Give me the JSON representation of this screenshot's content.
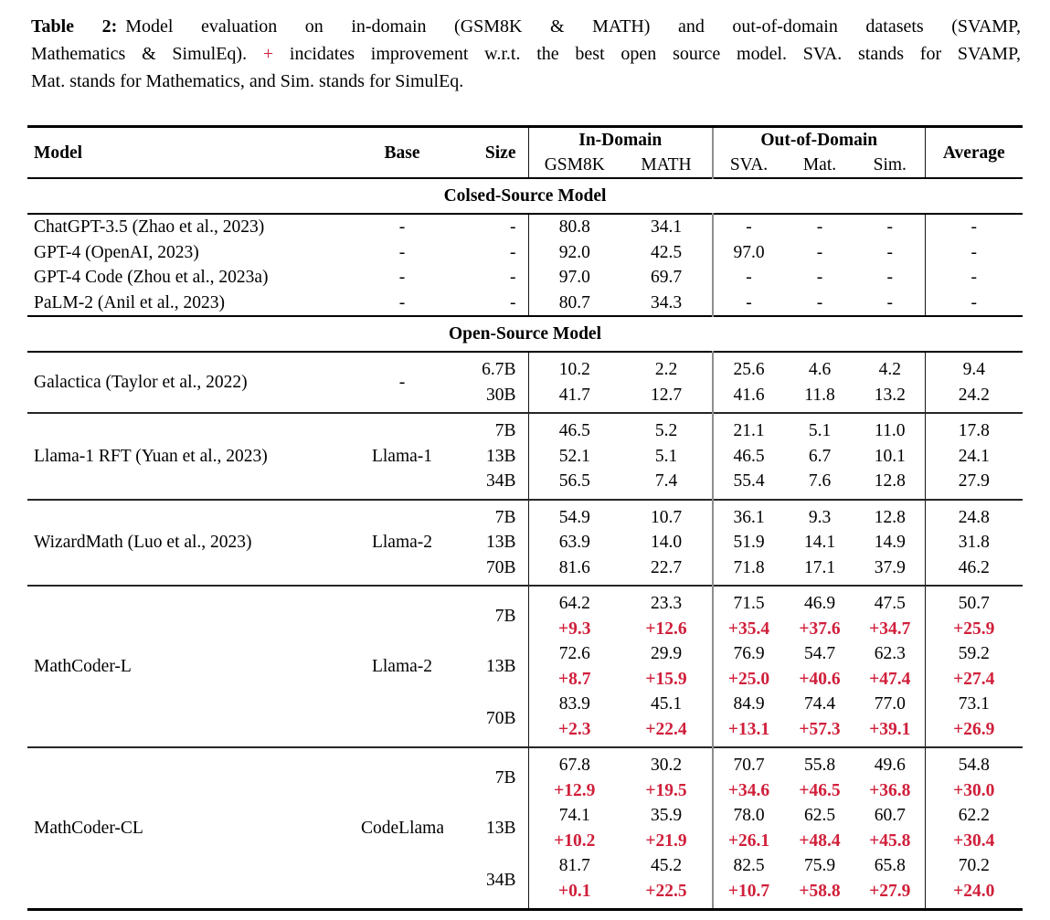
{
  "colors": {
    "delta_red": "#d01f3a"
  },
  "caption": {
    "label": "Table 2:",
    "line1_rest": "Model evaluation on in-domain (GSM8K & MATH) and out-of-domain datasets (SVAMP,",
    "line2_before_plus": "Mathematics & SimulEq). ",
    "plus_sign": "+",
    "line2_after_plus": " incidates improvement w.r.t. the best open source model. SVA. stands for SVAMP,",
    "line3": "Mat. stands for Mathematics, and Sim. stands for SimulEq."
  },
  "table": {
    "header": {
      "model": "Model",
      "base": "Base",
      "size": "Size",
      "in_domain": "In-Domain",
      "out_of_domain": "Out-of-Domain",
      "average": "Average",
      "in_domain_cols": [
        "GSM8K",
        "MATH"
      ],
      "out_of_domain_cols": [
        "SVA.",
        "Mat.",
        "Sim."
      ]
    },
    "sections": [
      {
        "title": "Colsed-Source Model",
        "blocks": [
          {
            "model": "ChatGPT-3.5 (Zhao et al., 2023)",
            "base": "-",
            "rows": [
              {
                "size": "-",
                "values": [
                  "80.8",
                  "34.1",
                  "-",
                  "-",
                  "-",
                  "-"
                ]
              }
            ]
          },
          {
            "model": "GPT-4 (OpenAI, 2023)",
            "base": "-",
            "rows": [
              {
                "size": "-",
                "values": [
                  "92.0",
                  "42.5",
                  "97.0",
                  "-",
                  "-",
                  "-"
                ]
              }
            ]
          },
          {
            "model": "GPT-4 Code (Zhou et al., 2023a)",
            "base": "-",
            "rows": [
              {
                "size": "-",
                "values": [
                  "97.0",
                  "69.7",
                  "-",
                  "-",
                  "-",
                  "-"
                ]
              }
            ]
          },
          {
            "model": "PaLM-2 (Anil et al., 2023)",
            "base": "-",
            "rows": [
              {
                "size": "-",
                "values": [
                  "80.7",
                  "34.3",
                  "-",
                  "-",
                  "-",
                  "-"
                ]
              }
            ]
          }
        ]
      },
      {
        "title": "Open-Source Model",
        "blocks": [
          {
            "model": "Galactica (Taylor et al., 2022)",
            "base": "-",
            "rows": [
              {
                "size": "6.7B",
                "values": [
                  "10.2",
                  "2.2",
                  "25.6",
                  "4.6",
                  "4.2",
                  "9.4"
                ]
              },
              {
                "size": "30B",
                "values": [
                  "41.7",
                  "12.7",
                  "41.6",
                  "11.8",
                  "13.2",
                  "24.2"
                ]
              }
            ]
          },
          {
            "model": "Llama-1 RFT (Yuan et al., 2023)",
            "base": "Llama-1",
            "rows": [
              {
                "size": "7B",
                "values": [
                  "46.5",
                  "5.2",
                  "21.1",
                  "5.1",
                  "11.0",
                  "17.8"
                ]
              },
              {
                "size": "13B",
                "values": [
                  "52.1",
                  "5.1",
                  "46.5",
                  "6.7",
                  "10.1",
                  "24.1"
                ]
              },
              {
                "size": "34B",
                "values": [
                  "56.5",
                  "7.4",
                  "55.4",
                  "7.6",
                  "12.8",
                  "27.9"
                ]
              }
            ]
          },
          {
            "model": "WizardMath (Luo et al., 2023)",
            "base": "Llama-2",
            "rows": [
              {
                "size": "7B",
                "values": [
                  "54.9",
                  "10.7",
                  "36.1",
                  "9.3",
                  "12.8",
                  "24.8"
                ]
              },
              {
                "size": "13B",
                "values": [
                  "63.9",
                  "14.0",
                  "51.9",
                  "14.1",
                  "14.9",
                  "31.8"
                ]
              },
              {
                "size": "70B",
                "values": [
                  "81.6",
                  "22.7",
                  "71.8",
                  "17.1",
                  "37.9",
                  "46.2"
                ]
              }
            ]
          },
          {
            "model": "MathCoder-L",
            "base": "Llama-2",
            "rows": [
              {
                "size": "7B",
                "values": [
                  "64.2",
                  "23.3",
                  "71.5",
                  "46.9",
                  "47.5",
                  "50.7"
                ],
                "delta": [
                  "+9.3",
                  "+12.6",
                  "+35.4",
                  "+37.6",
                  "+34.7",
                  "+25.9"
                ]
              },
              {
                "size": "13B",
                "values": [
                  "72.6",
                  "29.9",
                  "76.9",
                  "54.7",
                  "62.3",
                  "59.2"
                ],
                "delta": [
                  "+8.7",
                  "+15.9",
                  "+25.0",
                  "+40.6",
                  "+47.4",
                  "+27.4"
                ]
              },
              {
                "size": "70B",
                "values": [
                  "83.9",
                  "45.1",
                  "84.9",
                  "74.4",
                  "77.0",
                  "73.1"
                ],
                "delta": [
                  "+2.3",
                  "+22.4",
                  "+13.1",
                  "+57.3",
                  "+39.1",
                  "+26.9"
                ]
              }
            ]
          },
          {
            "model": "MathCoder-CL",
            "base": "CodeLlama",
            "rows": [
              {
                "size": "7B",
                "values": [
                  "67.8",
                  "30.2",
                  "70.7",
                  "55.8",
                  "49.6",
                  "54.8"
                ],
                "delta": [
                  "+12.9",
                  "+19.5",
                  "+34.6",
                  "+46.5",
                  "+36.8",
                  "+30.0"
                ]
              },
              {
                "size": "13B",
                "values": [
                  "74.1",
                  "35.9",
                  "78.0",
                  "62.5",
                  "60.7",
                  "62.2"
                ],
                "delta": [
                  "+10.2",
                  "+21.9",
                  "+26.1",
                  "+48.4",
                  "+45.8",
                  "+30.4"
                ]
              },
              {
                "size": "34B",
                "values": [
                  "81.7",
                  "45.2",
                  "82.5",
                  "75.9",
                  "65.8",
                  "70.2"
                ],
                "delta": [
                  "+0.1",
                  "+22.5",
                  "+10.7",
                  "+58.8",
                  "+27.9",
                  "+24.0"
                ]
              }
            ]
          }
        ]
      }
    ]
  }
}
